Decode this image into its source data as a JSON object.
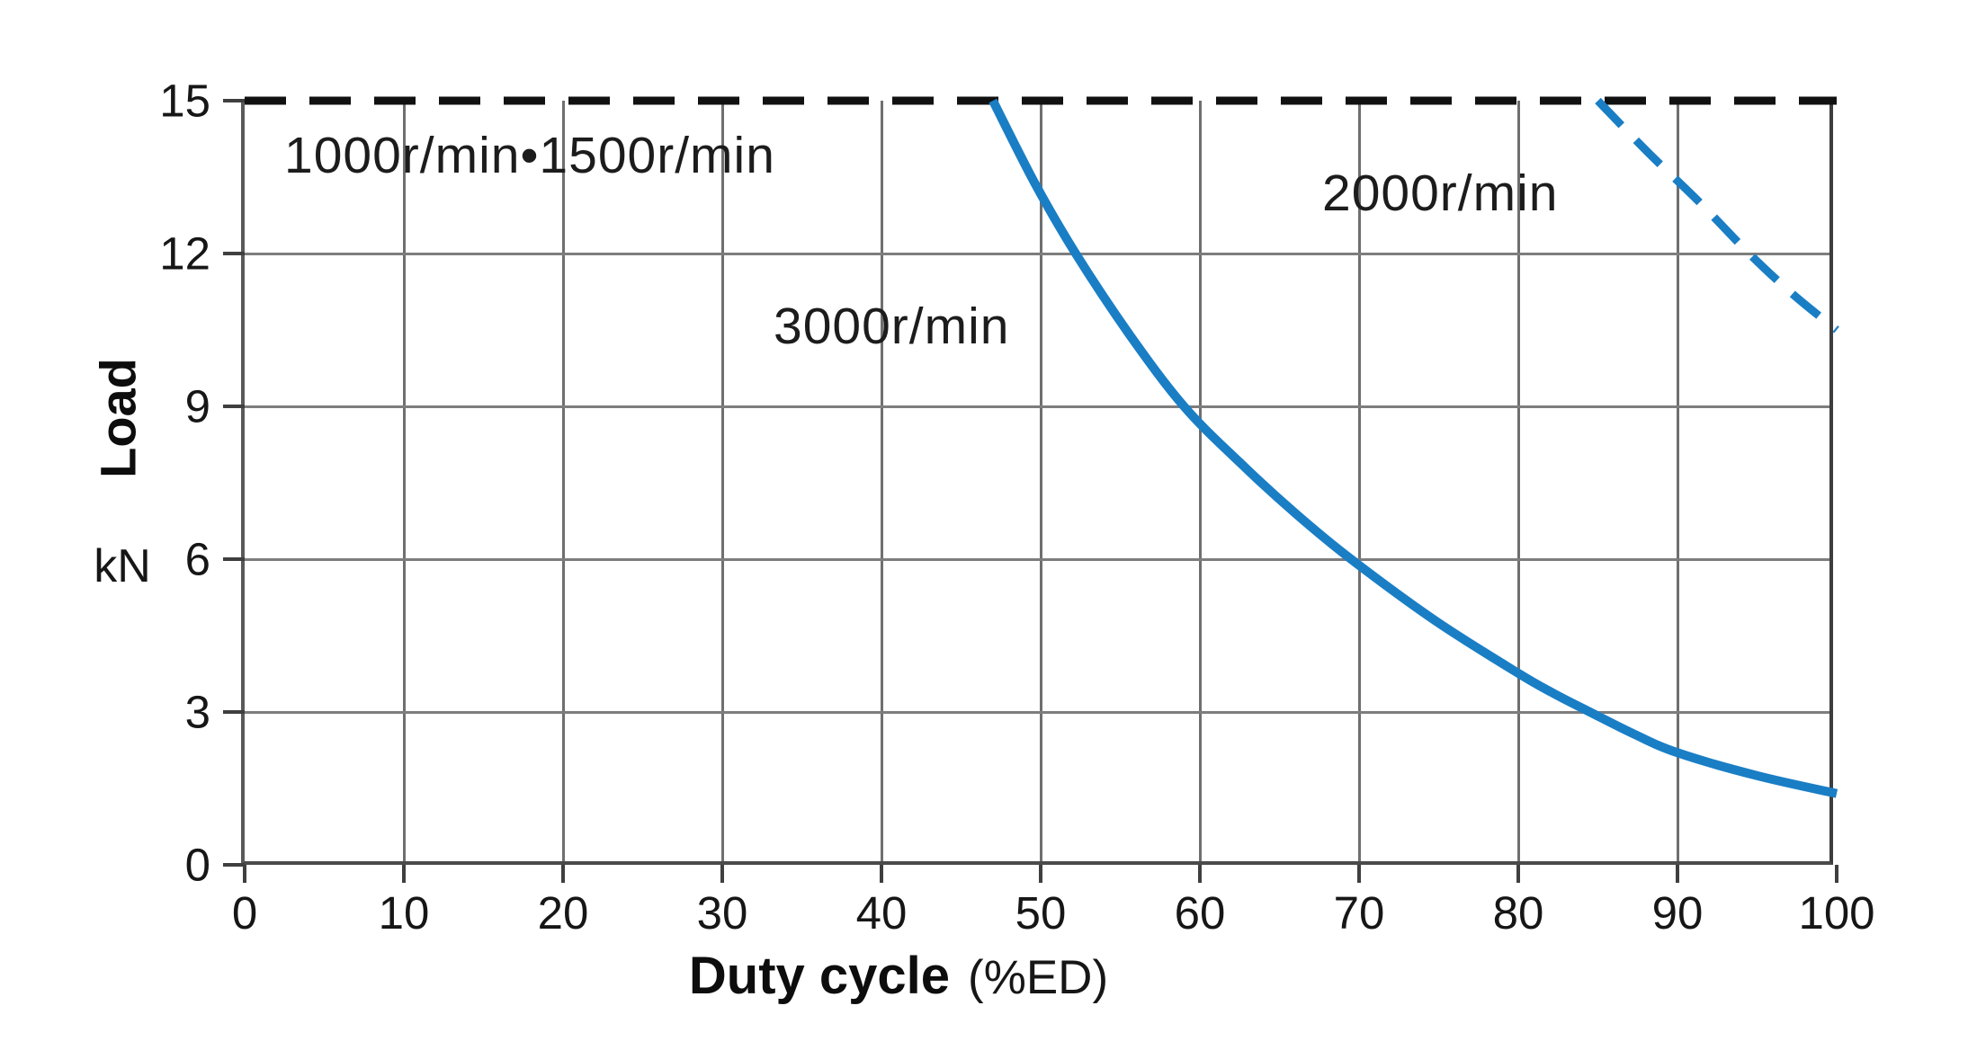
{
  "axes": {
    "y_title": "Load",
    "y_unit": "kN",
    "x_title": "Duty cycle",
    "x_unit": "(%ED)"
  },
  "chart_data": {
    "type": "line",
    "title": "",
    "xlabel": "Duty cycle (%ED)",
    "ylabel": "Load kN",
    "xlim": [
      0,
      100
    ],
    "ylim": [
      0,
      15
    ],
    "x_ticks": [
      0,
      10,
      20,
      30,
      40,
      50,
      60,
      70,
      80,
      90,
      100
    ],
    "y_ticks": [
      0,
      3,
      6,
      9,
      12,
      15
    ],
    "grid": true,
    "legend_position": "inline-annotations",
    "colors": {
      "curve_blue": "#1a7ec5",
      "curve_black": "#111111",
      "gridline": "#6f6f6f"
    },
    "series": [
      {
        "name": "1000r/min•1500r/min",
        "line_style": "dashed",
        "color": "#111111",
        "stroke_width": 9,
        "dash": "46 26",
        "points": [
          [
            0,
            15
          ],
          [
            100,
            15
          ]
        ]
      },
      {
        "name": "2000r/min",
        "line_style": "dashed",
        "color": "#1a7ec5",
        "stroke_width": 9,
        "dash": "38 23",
        "points": [
          [
            85,
            15
          ],
          [
            88.1,
            14.0
          ],
          [
            91.4,
            13.0
          ],
          [
            94.5,
            12
          ],
          [
            97.25,
            11.2
          ],
          [
            100,
            10.5
          ]
        ]
      },
      {
        "name": "3000r/min",
        "line_style": "solid",
        "color": "#1a7ec5",
        "stroke_width": 10,
        "dash": "",
        "points": [
          [
            47,
            15
          ],
          [
            49.6,
            13.4
          ],
          [
            52.2,
            12
          ],
          [
            55.6,
            10.4
          ],
          [
            59,
            9
          ],
          [
            62.5,
            7.9
          ],
          [
            66,
            6.9
          ],
          [
            69.5,
            6
          ],
          [
            74.75,
            4.8
          ],
          [
            80,
            3.76
          ],
          [
            82.25,
            3.36
          ],
          [
            84.5,
            3
          ],
          [
            87.25,
            2.57
          ],
          [
            90,
            2.2
          ],
          [
            95,
            1.75
          ],
          [
            100,
            1.4
          ]
        ]
      }
    ],
    "annotations": [
      {
        "text": "1000r/min•1500r/min",
        "x": 2.5,
        "y": 13.9
      },
      {
        "text": "2000r/min",
        "x": 68,
        "y": 13.2
      },
      {
        "text": "3000r/min",
        "x": 33,
        "y": 10.6
      }
    ]
  }
}
